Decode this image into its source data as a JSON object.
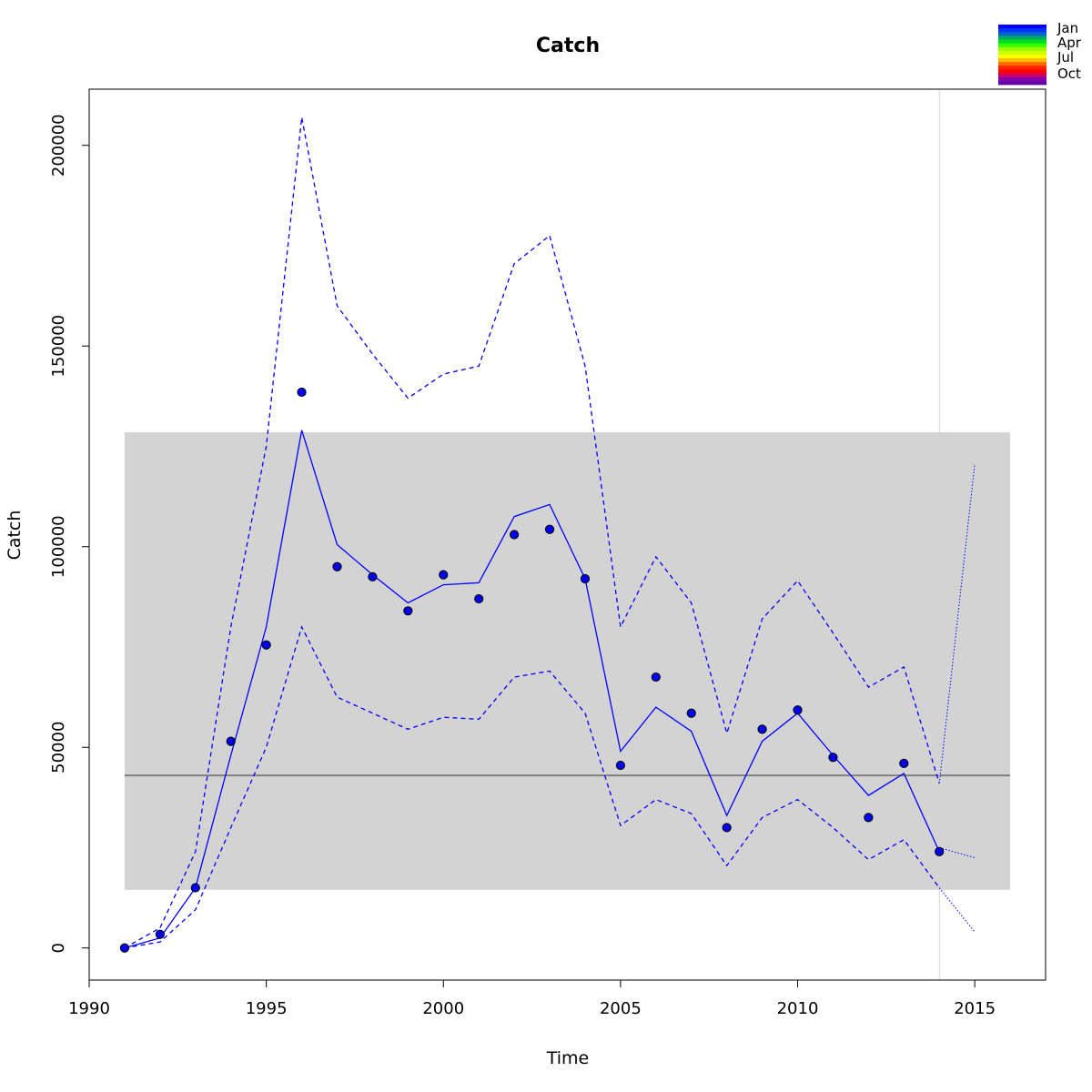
{
  "chart_data": {
    "type": "line",
    "title": "Catch",
    "xlabel": "Time",
    "ylabel": "Catch",
    "xlim": [
      1990,
      2017
    ],
    "ylim": [
      -8000,
      214000
    ],
    "x_ticks": [
      1990,
      1995,
      2000,
      2005,
      2010,
      2015
    ],
    "y_ticks": [
      0,
      50000,
      100000,
      150000,
      200000
    ],
    "grid": false,
    "colors": {
      "series": "#0000ff",
      "points": "#0000ee",
      "band": "#d3d3d3",
      "mean_line": "#808080",
      "vline": "#d3d3d3"
    },
    "band": {
      "x_range": [
        1991,
        2016
      ],
      "y_range": [
        14500,
        128500
      ]
    },
    "mean_line": {
      "y": 43000,
      "x_range": [
        1991,
        2016
      ]
    },
    "vline": {
      "x": 2014
    },
    "observed_points": {
      "x": [
        1991,
        1992,
        1993,
        1994,
        1995,
        1996,
        1997,
        1998,
        1999,
        2000,
        2001,
        2002,
        2003,
        2004,
        2005,
        2006,
        2007,
        2008,
        2009,
        2010,
        2011,
        2012,
        2013,
        2014
      ],
      "y": [
        0,
        3400,
        15000,
        51500,
        75500,
        138500,
        95000,
        92500,
        84000,
        93000,
        87000,
        103000,
        104300,
        92000,
        45500,
        67500,
        58500,
        30000,
        54500,
        59300,
        47500,
        32500,
        46000,
        24000
      ]
    },
    "series": [
      {
        "role": "fitted",
        "style": "solid",
        "x": [
          1991,
          1992,
          1993,
          1994,
          1995,
          1996,
          1997,
          1998,
          1999,
          2000,
          2001,
          2002,
          2003,
          2004,
          2005,
          2006,
          2007,
          2008,
          2009,
          2010,
          2011,
          2012,
          2013,
          2014
        ],
        "values": [
          0,
          2500,
          15000,
          48000,
          80000,
          129000,
          100500,
          93000,
          86000,
          90500,
          91000,
          107500,
          110500,
          92000,
          49000,
          60000,
          54000,
          33000,
          51500,
          58500,
          48000,
          38000,
          43500,
          24000
        ]
      },
      {
        "role": "upper",
        "style": "dashed",
        "x": [
          1991,
          1992,
          1993,
          1994,
          1995,
          1996,
          1997,
          1998,
          1999,
          2000,
          2001,
          2002,
          2003,
          2004,
          2005,
          2006,
          2007,
          2008,
          2009,
          2010,
          2011,
          2012,
          2013,
          2014
        ],
        "values": [
          0,
          5000,
          24000,
          80000,
          125000,
          207000,
          160000,
          148000,
          137000,
          143000,
          145000,
          170500,
          177500,
          145000,
          80000,
          97500,
          86000,
          53500,
          82000,
          91500,
          78500,
          65000,
          70000,
          41000
        ]
      },
      {
        "role": "lower",
        "style": "dashed",
        "x": [
          1991,
          1992,
          1993,
          1994,
          1995,
          1996,
          1997,
          1998,
          1999,
          2000,
          2001,
          2002,
          2003,
          2004,
          2005,
          2006,
          2007,
          2008,
          2009,
          2010,
          2011,
          2012,
          2013,
          2014
        ],
        "values": [
          0,
          1500,
          9500,
          30000,
          50000,
          80000,
          62500,
          58500,
          54500,
          57500,
          57000,
          67500,
          69000,
          58500,
          30500,
          37000,
          33500,
          20500,
          32500,
          37000,
          30000,
          22000,
          27000,
          15000
        ]
      },
      {
        "role": "forecast-upper",
        "style": "dotted",
        "x": [
          2014,
          2015
        ],
        "values": [
          41000,
          120500
        ]
      },
      {
        "role": "forecast-mid",
        "style": "dotted",
        "x": [
          2014,
          2015
        ],
        "values": [
          25000,
          22500
        ]
      },
      {
        "role": "forecast-lower",
        "style": "dotted",
        "x": [
          2014,
          2015
        ],
        "values": [
          15000,
          4000
        ]
      }
    ],
    "legend": {
      "placement": "top-right",
      "labels": [
        "Jan",
        "Apr",
        "Jul",
        "Oct"
      ],
      "swatch_colors": [
        "#0000ff",
        "#0033ff",
        "#0066cc",
        "#00aa66",
        "#00dd22",
        "#33ff00",
        "#99ff00",
        "#ccff00",
        "#ffff00",
        "#ffbb00",
        "#ff6600",
        "#ff2200",
        "#ff0000",
        "#cc0066",
        "#8800aa",
        "#6600aa"
      ]
    }
  }
}
